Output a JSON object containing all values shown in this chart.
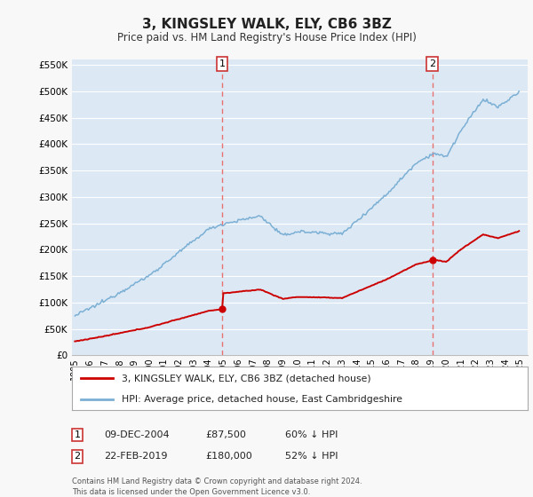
{
  "title": "3, KINGSLEY WALK, ELY, CB6 3BZ",
  "subtitle": "Price paid vs. HM Land Registry's House Price Index (HPI)",
  "sale1_date": "09-DEC-2004",
  "sale1_price": 87500,
  "sale1_label": "60% ↓ HPI",
  "sale2_date": "22-FEB-2019",
  "sale2_price": 180000,
  "sale2_label": "52% ↓ HPI",
  "property_color": "#cc0000",
  "hpi_color": "#7bafd4",
  "vline_color": "#e87070",
  "background_color": "#f8f8f8",
  "plot_bg_color": "#dce9f5",
  "grid_color": "#ffffff",
  "legend_line1": "3, KINGSLEY WALK, ELY, CB6 3BZ (detached house)",
  "legend_line2": "HPI: Average price, detached house, East Cambridgeshire",
  "footer": "Contains HM Land Registry data © Crown copyright and database right 2024.\nThis data is licensed under the Open Government Licence v3.0.",
  "xlim_start": 1994.8,
  "xlim_end": 2025.5,
  "ylim_max": 560000,
  "ylim_min": 0
}
